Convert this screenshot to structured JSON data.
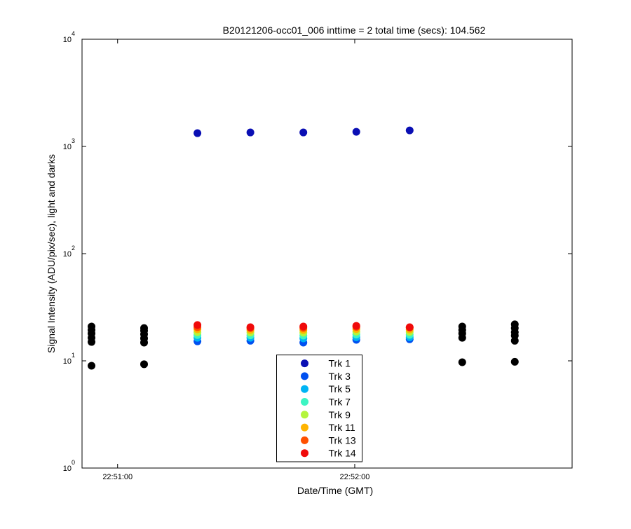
{
  "chart_data": {
    "type": "scatter",
    "title": "B20121206-occ01_006 inttime = 2 total time (secs): 104.562",
    "x_label": "Date/Time (GMT)",
    "y_label": "Signal Intensity (ADU/pix/sec), light and darks",
    "log_y": true,
    "grid": false,
    "legend": "lower center",
    "xlim": [
      82251,
      82375
    ],
    "xticks": [
      {
        "value": 82260,
        "label": "22:51:00"
      },
      {
        "value": 82320,
        "label": "22:52:00"
      }
    ],
    "ylim": [
      1,
      10000
    ],
    "yticks": [
      {
        "value": 1,
        "label": "10",
        "exponent": "0"
      },
      {
        "value": 10,
        "label": "10",
        "exponent": "1"
      },
      {
        "value": 100,
        "label": "10",
        "exponent": "2"
      },
      {
        "value": 1000,
        "label": "10",
        "exponent": "3"
      },
      {
        "value": 10000,
        "label": "10",
        "exponent": "4"
      }
    ],
    "series": [
      {
        "name": "Trk 1",
        "color": "#0a0fb4",
        "x": [
          82280.2,
          82293.6,
          82307,
          82320.4,
          82333.9
        ],
        "values": [
          1330,
          1350,
          1350,
          1370,
          1410
        ]
      },
      {
        "name": "Trk 3",
        "color": "#0050f0",
        "x": [
          82280.2,
          82293.6,
          82307,
          82320.4,
          82333.9
        ],
        "values": [
          15.2,
          15.4,
          14.8,
          15.7,
          15.9
        ]
      },
      {
        "name": "Trk 5",
        "color": "#00b4f5",
        "x": [
          82280.2,
          82293.6,
          82307,
          82320.4,
          82333.9
        ],
        "values": [
          16.4,
          16.4,
          16.2,
          16.6,
          16.6
        ]
      },
      {
        "name": "Trk 7",
        "color": "#3cf5c3",
        "x": [
          82280.2,
          82293.6,
          82307,
          82320.4,
          82333.9
        ],
        "values": [
          17.4,
          17.3,
          17.2,
          17.6,
          17.5
        ]
      },
      {
        "name": "Trk 9",
        "color": "#b4f53c",
        "x": [
          82280.2,
          82293.6,
          82307,
          82320.4,
          82333.9
        ],
        "values": [
          18.5,
          18.4,
          18.3,
          18.7,
          18.6
        ]
      },
      {
        "name": "Trk 11",
        "color": "#ffb400",
        "x": [
          82280.2,
          82293.6,
          82307,
          82320.4,
          82333.9
        ],
        "values": [
          19.7,
          19.4,
          19.4,
          19.8,
          19.6
        ]
      },
      {
        "name": "Trk 13",
        "color": "#ff5000",
        "x": [
          82280.2,
          82293.6,
          82307,
          82320.4,
          82333.9
        ],
        "values": [
          20.6,
          20.2,
          20.3,
          20.7,
          20.4
        ]
      },
      {
        "name": "Trk 14",
        "color": "#f00a0a",
        "x": [
          82280.2,
          82293.6,
          82307,
          82320.4,
          82333.9
        ],
        "values": [
          21.6,
          20.6,
          20.9,
          21.2,
          20.6
        ]
      },
      {
        "color": "#000000",
        "x": [
          82253.4,
          82253.4,
          82253.4,
          82253.4,
          82253.4,
          82253.4,
          82266.7,
          82266.7,
          82266.7,
          82266.7,
          82266.7,
          82266.7,
          82347.2,
          82347.2,
          82347.2,
          82347.2,
          82347.2,
          82360.5,
          82360.5,
          82360.5,
          82360.5,
          82360.5,
          82360.5
        ],
        "values": [
          20.9,
          19.4,
          18.0,
          16.4,
          15.0,
          9.0,
          20.2,
          19.1,
          17.7,
          16.2,
          14.8,
          9.3,
          20.9,
          19.4,
          18.0,
          16.4,
          9.7,
          21.9,
          20.2,
          18.5,
          17.2,
          15.4,
          9.8
        ]
      }
    ]
  }
}
